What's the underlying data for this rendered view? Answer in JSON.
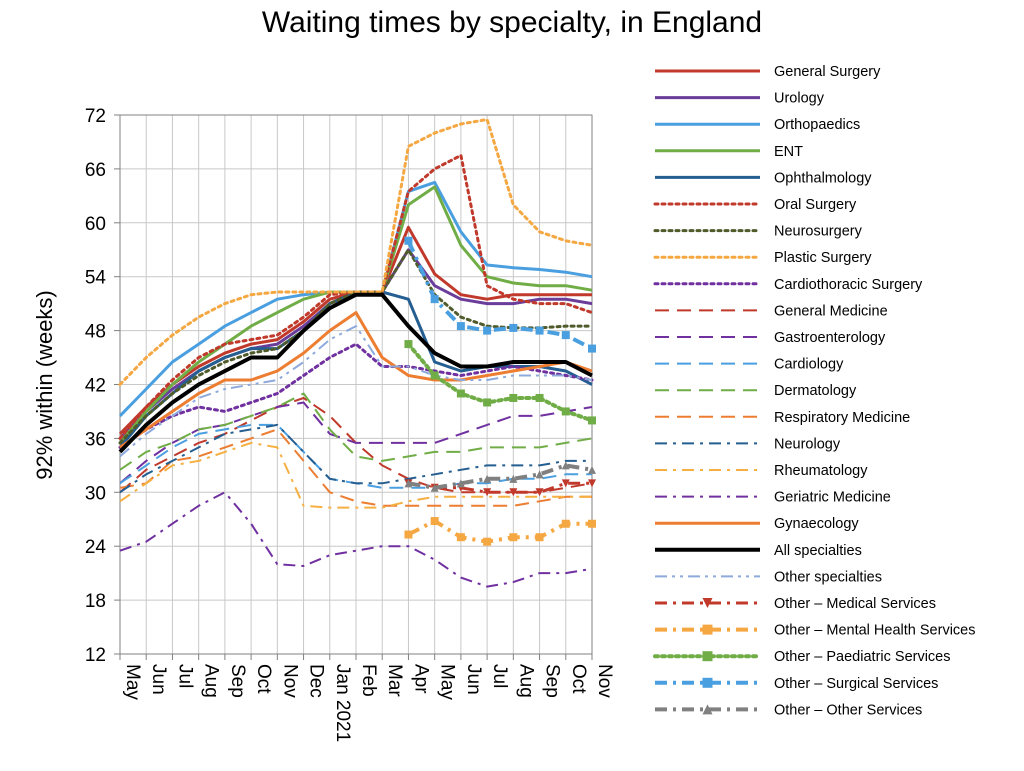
{
  "chart_data": {
    "type": "line",
    "title": "Waiting times by specialty, in England",
    "ylabel": "92% within (weeks)",
    "xlabel": "",
    "ylim": [
      12,
      72
    ],
    "yticks": [
      12,
      18,
      24,
      30,
      36,
      42,
      48,
      54,
      60,
      66,
      72
    ],
    "x": [
      "May",
      "Jun",
      "Jul",
      "Aug",
      "Sep",
      "Oct",
      "Nov",
      "Dec",
      "Jan 2021",
      "Feb",
      "Mar",
      "Apr",
      "May",
      "Jun",
      "Jul",
      "Aug",
      "Sep",
      "Oct",
      "Nov"
    ],
    "grid": true,
    "legend_position": "right",
    "series": [
      {
        "name": "General  Surgery",
        "color": "#c0392b",
        "dash": "solid",
        "width": 3,
        "values": [
          36.5,
          39.5,
          42.0,
          44.0,
          45.5,
          46.5,
          47.0,
          49.0,
          51.5,
          52.3,
          52.3,
          59.5,
          54.3,
          52.0,
          51.5,
          52.0,
          52.0,
          52.0,
          52.0
        ]
      },
      {
        "name": "Urology",
        "color": "#6a3d9a",
        "dash": "solid",
        "width": 3,
        "values": [
          36.0,
          39.0,
          41.5,
          43.5,
          45.0,
          46.0,
          46.5,
          48.5,
          51.0,
          52.3,
          52.3,
          57.0,
          53.0,
          51.5,
          51.0,
          51.0,
          51.5,
          51.5,
          51.0
        ]
      },
      {
        "name": "Orthopaedics",
        "color": "#4a9fe0",
        "dash": "solid",
        "width": 3,
        "values": [
          38.5,
          41.5,
          44.5,
          46.5,
          48.5,
          50.0,
          51.5,
          52.0,
          52.3,
          52.3,
          52.3,
          63.5,
          64.5,
          59.0,
          55.3,
          55.0,
          54.8,
          54.5,
          54.0
        ]
      },
      {
        "name": "ENT",
        "color": "#70ad47",
        "dash": "solid",
        "width": 3,
        "values": [
          35.5,
          39.0,
          42.0,
          44.5,
          46.5,
          48.5,
          50.0,
          51.5,
          52.3,
          52.3,
          52.3,
          62.0,
          64.0,
          57.5,
          54.0,
          53.3,
          53.0,
          53.0,
          52.5
        ]
      },
      {
        "name": "Ophthalmology",
        "color": "#255e91",
        "dash": "solid",
        "width": 3,
        "values": [
          35.0,
          38.5,
          41.0,
          43.5,
          45.0,
          46.0,
          46.0,
          48.0,
          51.0,
          52.3,
          52.3,
          51.5,
          44.5,
          43.5,
          44.0,
          44.0,
          44.0,
          43.5,
          42.0
        ]
      },
      {
        "name": "Oral  Surgery",
        "color": "#c0392b",
        "dash": "dot",
        "width": 3,
        "values": [
          36.0,
          39.5,
          42.5,
          45.0,
          46.5,
          47.0,
          47.5,
          49.5,
          52.0,
          52.3,
          52.3,
          63.5,
          66.0,
          67.5,
          53.0,
          51.5,
          51.0,
          51.0,
          50.0
        ]
      },
      {
        "name": "Neurosurgery",
        "color": "#4f5b2a",
        "dash": "dot",
        "width": 3,
        "values": [
          35.5,
          38.5,
          41.0,
          43.0,
          44.5,
          45.5,
          46.0,
          48.0,
          51.0,
          52.3,
          52.3,
          57.0,
          52.0,
          49.5,
          48.5,
          48.3,
          48.3,
          48.5,
          48.5
        ]
      },
      {
        "name": "Plastic  Surgery",
        "color": "#f5a742",
        "dash": "dot",
        "width": 3,
        "values": [
          42.0,
          45.0,
          47.5,
          49.5,
          51.0,
          52.0,
          52.3,
          52.3,
          52.3,
          52.3,
          52.3,
          68.5,
          70.0,
          71.0,
          71.5,
          62.0,
          59.0,
          58.0,
          57.5
        ]
      },
      {
        "name": "Cardiothoracic  Surgery",
        "color": "#7030a0",
        "dash": "dot",
        "width": 3,
        "values": [
          35.0,
          37.0,
          38.5,
          39.5,
          39.0,
          40.0,
          41.0,
          43.0,
          45.0,
          46.5,
          44.0,
          44.0,
          43.5,
          43.0,
          43.5,
          44.0,
          43.5,
          43.0,
          42.5
        ]
      },
      {
        "name": "General  Medicine",
        "color": "#c0392b",
        "dash": "dash",
        "width": 2,
        "values": [
          30.0,
          32.5,
          34.0,
          35.5,
          36.5,
          38.0,
          39.5,
          40.5,
          38.5,
          35.5,
          33.0,
          31.5,
          30.5,
          30.0,
          30.0,
          30.0,
          30.0,
          30.5,
          31.0
        ]
      },
      {
        "name": "Gastroenterology",
        "color": "#7030a0",
        "dash": "dash",
        "width": 2,
        "values": [
          31.0,
          33.5,
          35.5,
          37.0,
          37.5,
          38.5,
          39.5,
          40.0,
          36.5,
          35.5,
          35.5,
          35.5,
          35.5,
          36.5,
          37.5,
          38.5,
          38.5,
          39.0,
          39.5
        ]
      },
      {
        "name": "Cardiology",
        "color": "#4a9fe0",
        "dash": "dash",
        "width": 2,
        "values": [
          31.0,
          33.0,
          35.0,
          36.5,
          37.0,
          37.5,
          37.5,
          34.5,
          31.5,
          31.0,
          30.5,
          30.5,
          30.5,
          31.0,
          31.0,
          31.5,
          31.5,
          32.0,
          32.0
        ]
      },
      {
        "name": "Dermatology",
        "color": "#70ad47",
        "dash": "dash",
        "width": 2,
        "values": [
          32.5,
          34.5,
          35.5,
          37.0,
          37.5,
          38.5,
          39.5,
          41.0,
          37.0,
          34.0,
          33.5,
          34.0,
          34.5,
          34.5,
          35.0,
          35.0,
          35.0,
          35.5,
          36.0
        ]
      },
      {
        "name": "Respiratory  Medicine",
        "color": "#ed7d31",
        "dash": "dash",
        "width": 2,
        "values": [
          30.5,
          31.0,
          33.5,
          34.0,
          35.0,
          36.0,
          37.0,
          33.5,
          30.0,
          29.0,
          28.5,
          28.5,
          28.5,
          28.5,
          28.5,
          28.5,
          29.0,
          29.5,
          29.5
        ]
      },
      {
        "name": "Neurology",
        "color": "#255e91",
        "dash": "dashdot",
        "width": 2,
        "values": [
          30.0,
          32.0,
          33.5,
          35.0,
          36.5,
          37.0,
          37.5,
          34.5,
          31.5,
          31.0,
          31.0,
          31.5,
          32.0,
          32.5,
          33.0,
          33.0,
          33.0,
          33.5,
          33.5
        ]
      },
      {
        "name": "Rheumatology",
        "color": "#f5b041",
        "dash": "dashdot",
        "width": 2,
        "values": [
          29.0,
          31.0,
          33.0,
          33.5,
          34.5,
          35.5,
          35.0,
          28.5,
          28.3,
          28.3,
          28.3,
          29.0,
          29.5,
          29.5,
          29.5,
          29.5,
          29.5,
          29.5,
          29.5
        ]
      },
      {
        "name": "Geriatric  Medicine",
        "color": "#7030a0",
        "dash": "dashdot",
        "width": 2,
        "values": [
          23.5,
          24.5,
          26.5,
          28.5,
          30.0,
          26.5,
          22.0,
          21.8,
          23.0,
          23.5,
          24.0,
          24.0,
          22.5,
          20.5,
          19.5,
          20.0,
          21.0,
          21.0,
          21.5
        ]
      },
      {
        "name": "Gynaecology",
        "color": "#ed7d31",
        "dash": "solid",
        "width": 3,
        "values": [
          35.0,
          37.0,
          39.0,
          41.0,
          42.5,
          42.5,
          43.5,
          45.5,
          48.0,
          50.0,
          45.0,
          43.0,
          42.5,
          42.5,
          43.0,
          43.5,
          44.0,
          44.5,
          43.5
        ]
      },
      {
        "name": "All  specialties",
        "color": "#000000",
        "dash": "solid",
        "width": 4,
        "values": [
          34.5,
          37.5,
          40.0,
          42.0,
          43.5,
          45.0,
          45.0,
          48.0,
          50.5,
          52.0,
          52.0,
          48.5,
          45.5,
          44.0,
          44.0,
          44.5,
          44.5,
          44.5,
          43.0
        ]
      },
      {
        "name": "Other  specialties",
        "color": "#8ea9db",
        "dash": "dashdotdot",
        "width": 2,
        "values": [
          34.0,
          36.5,
          38.5,
          40.5,
          41.5,
          42.0,
          42.5,
          44.5,
          47.0,
          48.5,
          44.0,
          44.0,
          43.0,
          42.5,
          42.5,
          43.0,
          43.0,
          43.0,
          42.5
        ]
      },
      {
        "name": "Other  –  Medical  Services",
        "color": "#c0392b",
        "dash": "dashdot",
        "width": 3,
        "marker": "triangle-down",
        "values": [
          null,
          null,
          null,
          null,
          null,
          null,
          null,
          null,
          null,
          null,
          null,
          31.0,
          30.5,
          30.5,
          30.0,
          30.0,
          30.0,
          31.0,
          31.0
        ]
      },
      {
        "name": "Other  –  Mental  Health  Services",
        "color": "#f5a742",
        "dash": "dashdot",
        "width": 4,
        "marker": "square",
        "values": [
          null,
          null,
          null,
          null,
          null,
          null,
          null,
          null,
          null,
          null,
          null,
          25.3,
          26.8,
          25.0,
          24.5,
          25.0,
          25.0,
          26.5,
          26.5
        ]
      },
      {
        "name": "Other  –  Paediatric  Services",
        "color": "#70ad47",
        "dash": "dot",
        "width": 4,
        "marker": "square",
        "values": [
          null,
          null,
          null,
          null,
          null,
          null,
          null,
          null,
          null,
          null,
          null,
          46.5,
          43.0,
          41.0,
          40.0,
          40.5,
          40.5,
          39.0,
          38.0
        ]
      },
      {
        "name": "Other  –  Surgical  Services",
        "color": "#4a9fe0",
        "dash": "dashdot",
        "width": 4,
        "marker": "square",
        "values": [
          null,
          null,
          null,
          null,
          null,
          null,
          null,
          null,
          null,
          null,
          null,
          58.0,
          51.5,
          48.5,
          48.0,
          48.3,
          48.0,
          47.5,
          46.0
        ]
      },
      {
        "name": "Other  –  Other  Services",
        "color": "#808080",
        "dash": "dashdot",
        "width": 4,
        "marker": "triangle-up",
        "values": [
          null,
          null,
          null,
          null,
          null,
          null,
          null,
          null,
          null,
          null,
          null,
          31.0,
          30.5,
          31.0,
          31.5,
          31.5,
          32.0,
          33.0,
          32.5
        ]
      }
    ]
  }
}
